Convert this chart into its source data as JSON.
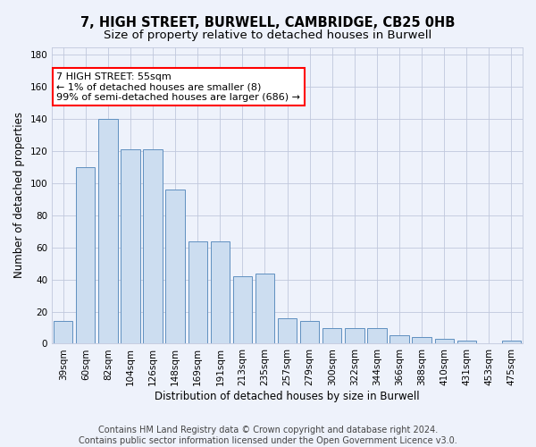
{
  "title": "7, HIGH STREET, BURWELL, CAMBRIDGE, CB25 0HB",
  "subtitle": "Size of property relative to detached houses in Burwell",
  "xlabel": "Distribution of detached houses by size in Burwell",
  "ylabel": "Number of detached properties",
  "footer_line1": "Contains HM Land Registry data © Crown copyright and database right 2024.",
  "footer_line2": "Contains public sector information licensed under the Open Government Licence v3.0.",
  "categories": [
    "39sqm",
    "60sqm",
    "82sqm",
    "104sqm",
    "126sqm",
    "148sqm",
    "169sqm",
    "191sqm",
    "213sqm",
    "235sqm",
    "257sqm",
    "279sqm",
    "300sqm",
    "322sqm",
    "344sqm",
    "366sqm",
    "388sqm",
    "410sqm",
    "431sqm",
    "453sqm",
    "475sqm"
  ],
  "values": [
    14,
    110,
    140,
    121,
    121,
    96,
    64,
    64,
    42,
    44,
    16,
    14,
    10,
    10,
    10,
    5,
    4,
    3,
    2,
    0,
    2
  ],
  "bar_color": "#ccddf0",
  "bar_edge_color": "#6090c0",
  "annotation_line1": "7 HIGH STREET: 55sqm",
  "annotation_line2": "← 1% of detached houses are smaller (8)",
  "annotation_line3": "99% of semi-detached houses are larger (686) →",
  "annotation_box_color": "white",
  "annotation_box_edge_color": "red",
  "ylim": [
    0,
    185
  ],
  "yticks": [
    0,
    20,
    40,
    60,
    80,
    100,
    120,
    140,
    160,
    180
  ],
  "bg_color": "#eef2fb",
  "plot_bg_color": "#eef2fb",
  "grid_color": "#c0c8dc",
  "title_fontsize": 10.5,
  "subtitle_fontsize": 9.5,
  "axis_label_fontsize": 8.5,
  "tick_fontsize": 7.5,
  "footer_fontsize": 7.0,
  "annot_fontsize": 8.0
}
